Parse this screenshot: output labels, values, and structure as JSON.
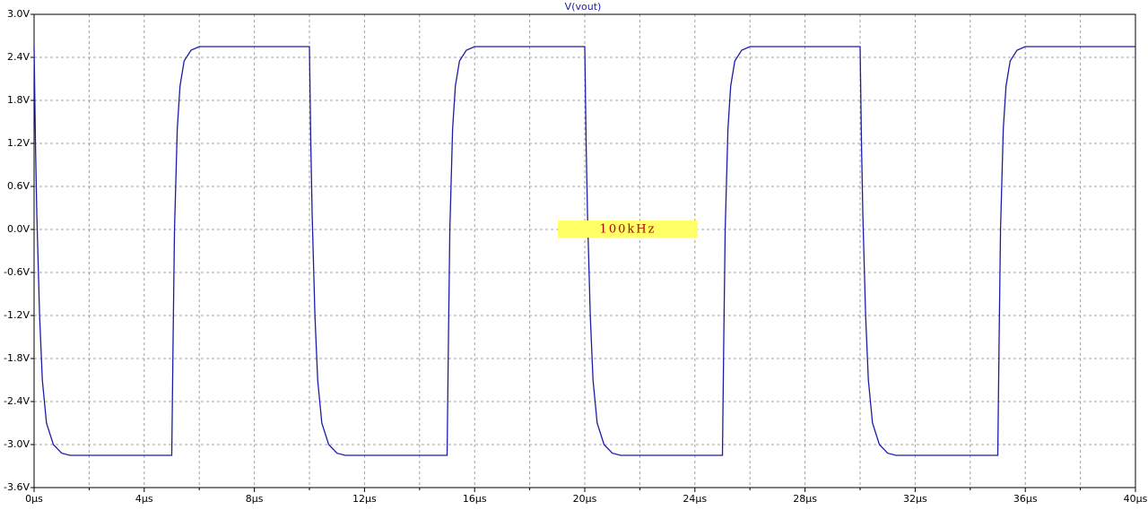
{
  "chart_data": {
    "type": "line",
    "title": "V(vout)",
    "color": "#1c1ca8",
    "grid": true,
    "annotation": "100kHz",
    "x": [
      0,
      0.05,
      0.1,
      0.2,
      0.3,
      0.45,
      0.7,
      1.0,
      1.3,
      5,
      5.05,
      5.1,
      5.2,
      5.3,
      5.45,
      5.7,
      6.0,
      10,
      10.05,
      10.1,
      10.2,
      10.3,
      10.45,
      10.7,
      11.0,
      11.3,
      15,
      15.05,
      15.1,
      15.2,
      15.3,
      15.45,
      15.7,
      16.0,
      20,
      20.05,
      20.1,
      20.2,
      20.3,
      20.45,
      20.7,
      21.0,
      21.3,
      25,
      25.05,
      25.1,
      25.2,
      25.3,
      25.45,
      25.7,
      26.0,
      30,
      30.05,
      30.1,
      30.2,
      30.3,
      30.45,
      30.7,
      31.0,
      31.3,
      35,
      35.05,
      35.1,
      35.2,
      35.3,
      35.45,
      35.7,
      36.0,
      40
    ],
    "values": [
      2.55,
      1.2,
      0.2,
      -1.2,
      -2.1,
      -2.7,
      -3.0,
      -3.12,
      -3.15,
      -3.15,
      -1.5,
      0.0,
      1.4,
      2.0,
      2.35,
      2.5,
      2.55,
      2.55,
      1.2,
      0.2,
      -1.2,
      -2.1,
      -2.7,
      -3.0,
      -3.12,
      -3.15,
      -3.15,
      -1.5,
      0.0,
      1.4,
      2.0,
      2.35,
      2.5,
      2.55,
      2.55,
      1.2,
      0.2,
      -1.2,
      -2.1,
      -2.7,
      -3.0,
      -3.12,
      -3.15,
      -3.15,
      -1.5,
      0.0,
      1.4,
      2.0,
      2.35,
      2.5,
      2.55,
      2.55,
      1.2,
      0.2,
      -1.2,
      -2.1,
      -2.7,
      -3.0,
      -3.12,
      -3.15,
      -3.15,
      -1.5,
      0.0,
      1.4,
      2.0,
      2.35,
      2.5,
      2.55,
      2.55
    ],
    "xlim": [
      0,
      40
    ],
    "ylim": [
      -3.6,
      3.0
    ],
    "xticks": [
      {
        "value": 0,
        "label": "0µs"
      },
      {
        "value": 4,
        "label": "4µs"
      },
      {
        "value": 8,
        "label": "8µs"
      },
      {
        "value": 12,
        "label": "12µs"
      },
      {
        "value": 16,
        "label": "16µs"
      },
      {
        "value": 20,
        "label": "20µs"
      },
      {
        "value": 24,
        "label": "24µs"
      },
      {
        "value": 28,
        "label": "28µs"
      },
      {
        "value": 32,
        "label": "32µs"
      },
      {
        "value": 36,
        "label": "36µs"
      },
      {
        "value": 40,
        "label": "40µs"
      }
    ],
    "xminorticks": [
      2,
      6,
      10,
      14,
      18,
      22,
      26,
      30,
      34,
      38
    ],
    "yticks": [
      {
        "value": 3.0,
        "label": "3.0V"
      },
      {
        "value": 2.4,
        "label": "2.4V"
      },
      {
        "value": 1.8,
        "label": "1.8V"
      },
      {
        "value": 1.2,
        "label": "1.2V"
      },
      {
        "value": 0.6,
        "label": "0.6V"
      },
      {
        "value": 0,
        "label": "0.0V"
      },
      {
        "value": -0.6,
        "label": "-0.6V"
      },
      {
        "value": -1.2,
        "label": "-1.2V"
      },
      {
        "value": -1.8,
        "label": "-1.8V"
      },
      {
        "value": -2.4,
        "label": "-2.4V"
      },
      {
        "value": -3.0,
        "label": "-3.0V"
      },
      {
        "value": -3.6,
        "label": "-3.6V"
      }
    ]
  }
}
